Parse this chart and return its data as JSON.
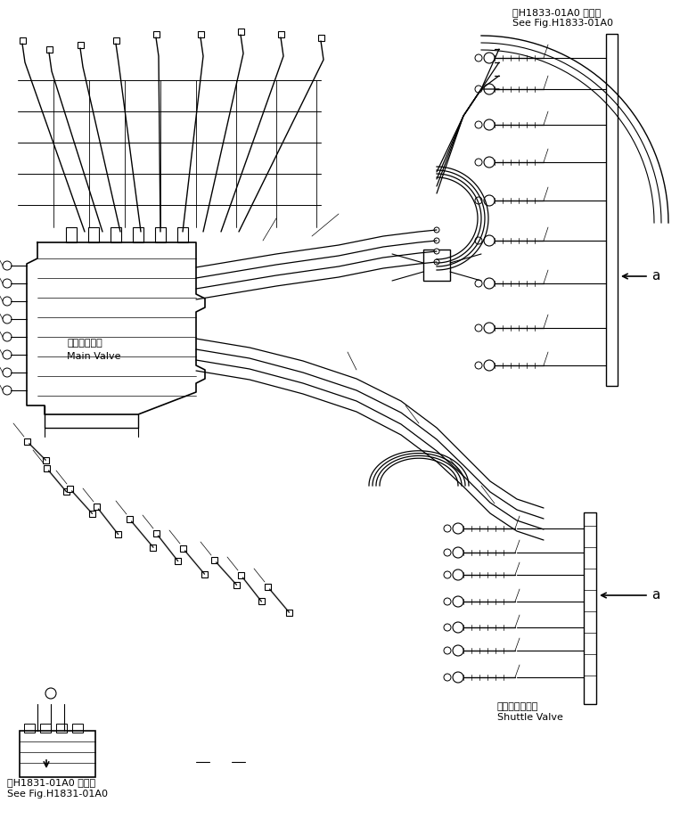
{
  "title_top_right_line1": "第H1833-01A0 図参照",
  "title_top_right_line2": "See Fig.H1833-01A0",
  "title_bottom_left_line1": "第H1831-01A0 図参照",
  "title_bottom_left_line2": "See Fig.H1831-01A0",
  "label_main_valve_jp": "メインバルブ",
  "label_main_valve_en": "Main Valve",
  "label_shuttle_valve_jp": "シャトルバルブ",
  "label_shuttle_valve_en": "Shuttle Valve",
  "label_a": "a",
  "bg_color": "#ffffff",
  "line_color": "#000000",
  "font_size_small": 7,
  "font_size_medium": 8,
  "font_size_large": 9
}
